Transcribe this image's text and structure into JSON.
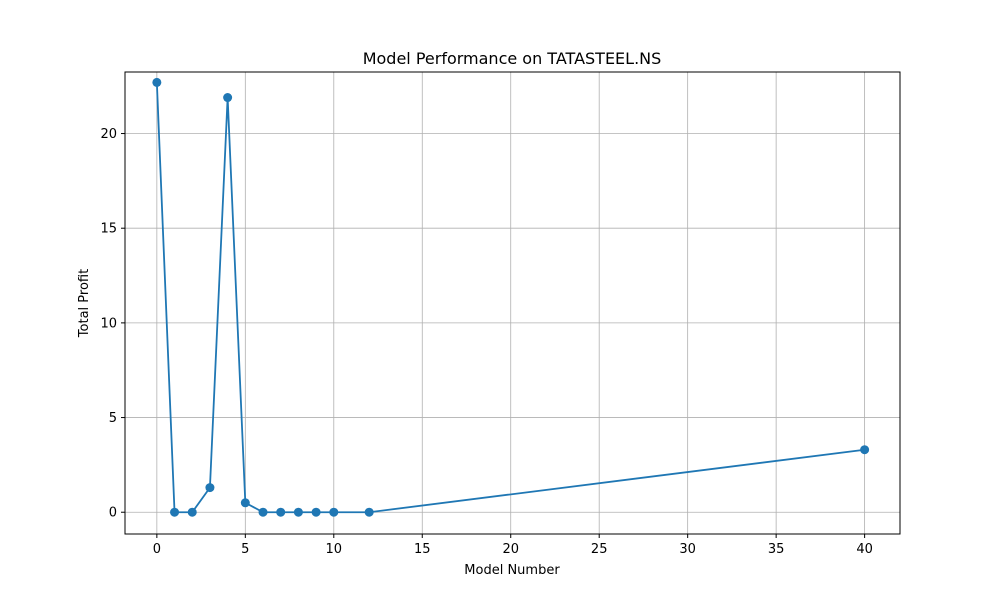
{
  "chart_data": {
    "type": "line",
    "title": "Model Performance on TATASTEEL.NS",
    "xlabel": "Model Number",
    "ylabel": "Total Profit",
    "xlim": [
      -1.8,
      42.0
    ],
    "ylim": [
      -1.15,
      23.25
    ],
    "xticks": [
      0,
      5,
      10,
      15,
      20,
      25,
      30,
      35,
      40
    ],
    "yticks": [
      0,
      5,
      10,
      15,
      20
    ],
    "grid": true,
    "series": [
      {
        "x": [
          0,
          1,
          2,
          3,
          4,
          5,
          6,
          7,
          8,
          9,
          10,
          12,
          40
        ],
        "values": [
          22.7,
          0.0,
          0.0,
          1.3,
          21.9,
          0.5,
          0.0,
          0.0,
          0.0,
          0.0,
          0.0,
          0.0,
          3.3
        ],
        "color": "#1f77b4",
        "marker": "circle"
      }
    ]
  }
}
